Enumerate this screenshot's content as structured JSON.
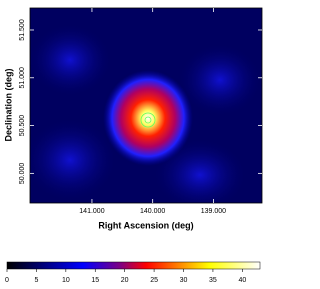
{
  "chart_data": {
    "type": "image",
    "xlabel": "Right Ascension (deg)",
    "ylabel": "Declination (deg)",
    "xlim": [
      142.02,
      138.2
    ],
    "ylim": [
      49.69,
      51.73
    ],
    "xticks": [
      {
        "value": 141,
        "label": "141.000"
      },
      {
        "value": 140,
        "label": "140.000"
      },
      {
        "value": 139,
        "label": "139.000"
      }
    ],
    "yticks": [
      {
        "value": 50,
        "label": "50.000"
      },
      {
        "value": 50.5,
        "label": "50.500"
      },
      {
        "value": 51,
        "label": "51.000"
      },
      {
        "value": 51.5,
        "label": "51.500"
      }
    ],
    "colorbar": {
      "lim": [
        0,
        43
      ],
      "ticks": [
        0,
        5,
        10,
        15,
        20,
        25,
        30,
        35,
        40
      ]
    }
  }
}
